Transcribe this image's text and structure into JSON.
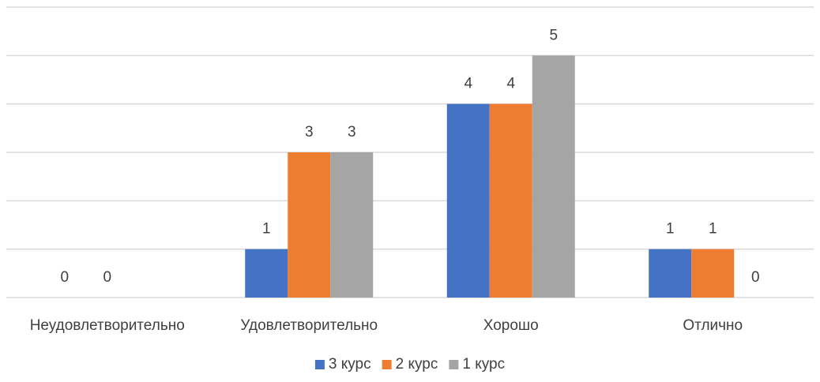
{
  "chart_data": {
    "type": "bar",
    "title": "",
    "xlabel": "",
    "ylabel": "",
    "categories": [
      "Неудовлетворительно",
      "Удовлетворительно",
      "Хорошо",
      "Отлично"
    ],
    "series": [
      {
        "name": "3 курс",
        "color": "#4472c4",
        "values": [
          0,
          1,
          4,
          1
        ]
      },
      {
        "name": "2 курс",
        "color": "#ed7d31",
        "values": [
          0,
          3,
          4,
          1
        ]
      },
      {
        "name": "1 курс",
        "color": "#a5a5a5",
        "values": [
          null,
          3,
          5,
          0
        ]
      }
    ],
    "ylim": [
      0,
      6
    ],
    "grid": true,
    "y_tick_labels_shown": false,
    "data_labels": true,
    "legend_position": "bottom"
  }
}
